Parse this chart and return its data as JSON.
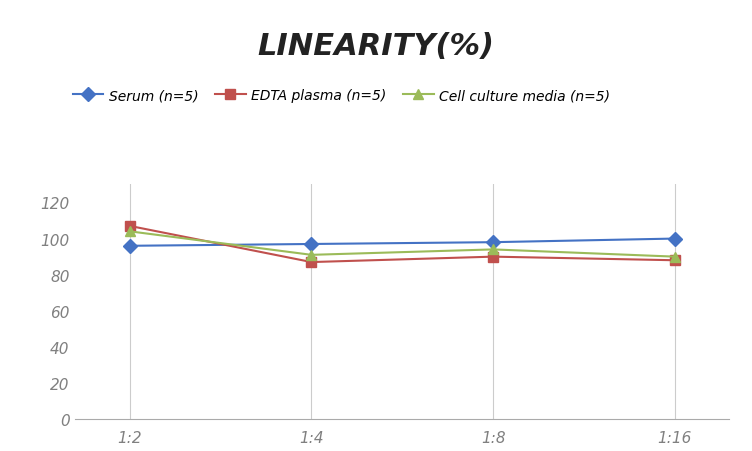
{
  "title": "LINEARITY(%)",
  "x_labels": [
    "1:2",
    "1:4",
    "1:8",
    "1:16"
  ],
  "x_positions": [
    0,
    1,
    2,
    3
  ],
  "series": [
    {
      "label": "Serum (n=5)",
      "values": [
        96,
        97,
        98,
        100
      ],
      "color": "#4472C4",
      "marker": "D",
      "marker_size": 7,
      "linewidth": 1.5
    },
    {
      "label": "EDTA plasma (n=5)",
      "values": [
        107,
        87,
        90,
        88
      ],
      "color": "#C0504D",
      "marker": "s",
      "marker_size": 7,
      "linewidth": 1.5
    },
    {
      "label": "Cell culture media (n=5)",
      "values": [
        104,
        91,
        94,
        90
      ],
      "color": "#9BBB59",
      "marker": "^",
      "marker_size": 7,
      "linewidth": 1.5
    }
  ],
  "ylim": [
    0,
    130
  ],
  "yticks": [
    0,
    20,
    40,
    60,
    80,
    100,
    120
  ],
  "background_color": "#FFFFFF",
  "grid_color": "#CCCCCC",
  "title_fontsize": 22,
  "legend_fontsize": 10,
  "tick_fontsize": 11,
  "tick_color": "#808080"
}
